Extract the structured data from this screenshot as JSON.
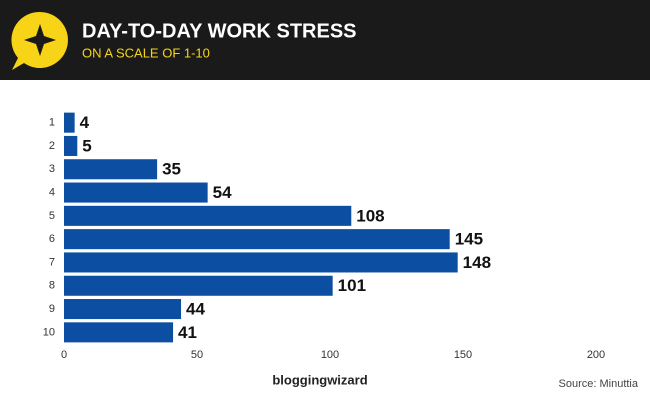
{
  "chart_data": {
    "type": "bar",
    "orientation": "horizontal",
    "title": "DAY-TO-DAY WORK STRESS",
    "subtitle": "ON A SCALE OF 1-10",
    "categories": [
      "1",
      "2",
      "3",
      "4",
      "5",
      "6",
      "7",
      "8",
      "9",
      "10"
    ],
    "values": [
      4,
      5,
      35,
      54,
      108,
      145,
      148,
      101,
      44,
      41
    ],
    "color": "#0b4ea2",
    "xlim": [
      0,
      200
    ],
    "xticks": [
      0,
      50,
      100,
      150,
      200
    ],
    "grid": false,
    "logo": "bloggingwizard",
    "source": "Source: Minuttia"
  }
}
